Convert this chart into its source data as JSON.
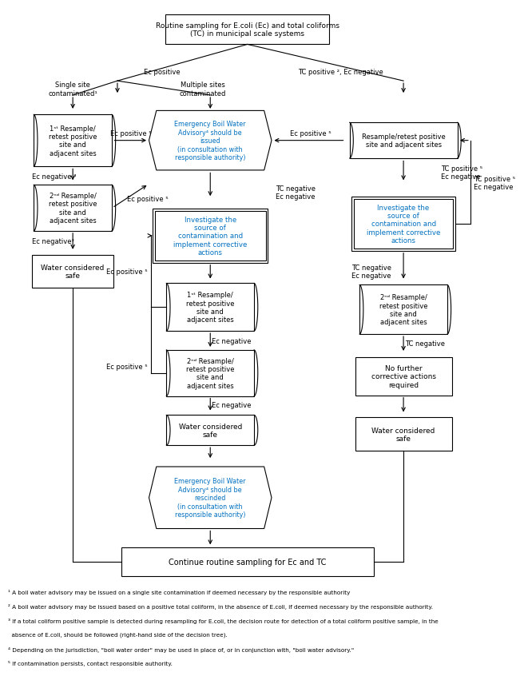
{
  "figsize": [
    6.56,
    8.62
  ],
  "dpi": 100,
  "bg_color": "#ffffff",
  "footnotes": [
    "1 A boil water advisory may be issued on a single site contamination if deemed necessary by the responsible authority",
    "2 A boil water advisory may be issued based on a positive total coliform, in the absence of E.coli, if deemed necessary by the responsible authority.",
    "3 If a total coliform positive sample is detected during resampling for E.coli, the decision route for detection of a total coliform positive sample, in the",
    "  absence of E.coli, should be followed (right-hand side of the decision tree).",
    "4 Depending on the jurisdiction, \"boil water order\" may be used in place of, or in conjunction with, \"boil water advisory.\"",
    "5 If contamination persists, contact responsible authority."
  ]
}
